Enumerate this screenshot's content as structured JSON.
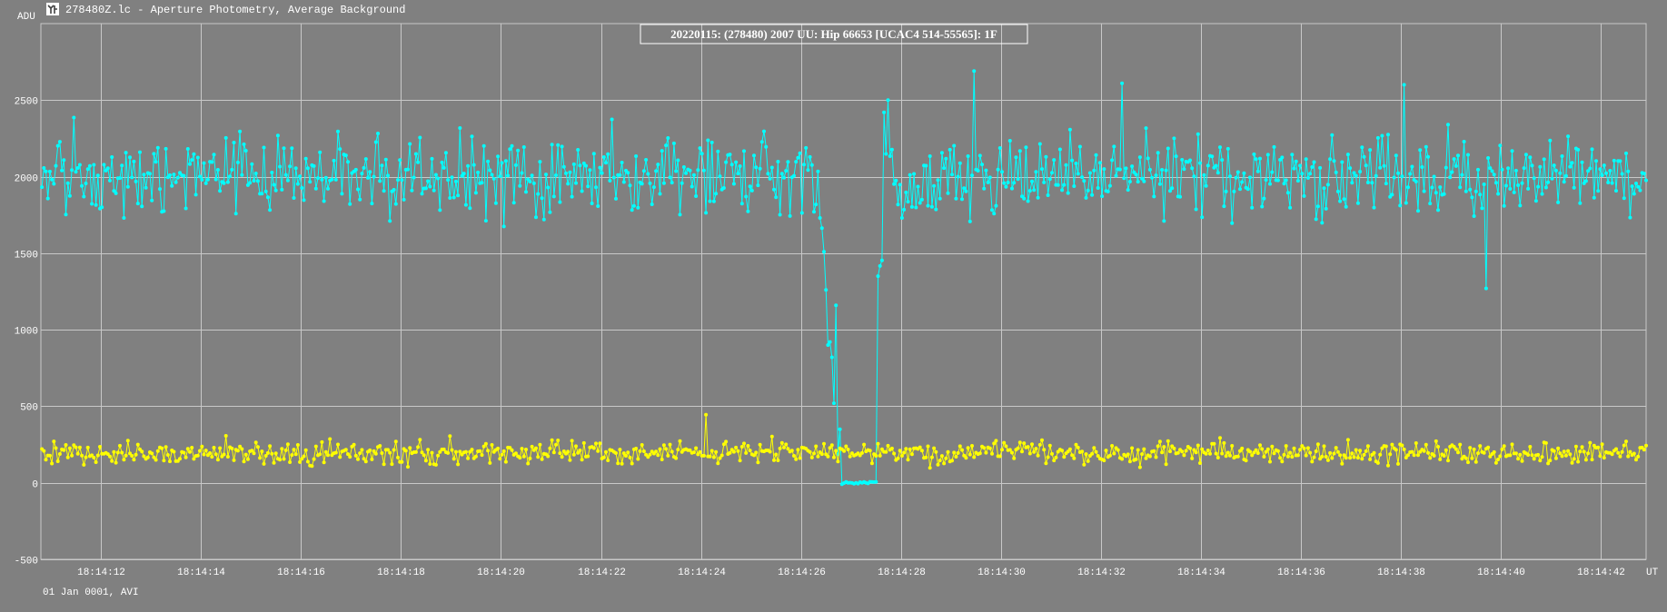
{
  "window": {
    "title": "278480Z.lc - Aperture Photometry, Average Background",
    "icon": "tangra-app-icon"
  },
  "chart_data": {
    "type": "line",
    "title": "20220115: (278480) 2007 UU: Hip 66653 [UCAC4 514-55565]: 1F",
    "ylabel": "ADU",
    "xlabel": "UT",
    "footer": "01 Jan 0001, AVI",
    "ylim": [
      -500,
      3000
    ],
    "yticks": [
      -500,
      0,
      500,
      1000,
      1500,
      2000,
      2500
    ],
    "xlim": [
      10.8,
      42.9
    ],
    "xticks_seconds": [
      12,
      14,
      16,
      18,
      20,
      22,
      24,
      26,
      28,
      30,
      32,
      34,
      36,
      38,
      40,
      42
    ],
    "xtick_labels": [
      "18:14:12",
      "18:14:14",
      "18:14:16",
      "18:14:18",
      "18:14:20",
      "18:14:22",
      "18:14:24",
      "18:14:26",
      "18:14:28",
      "18:14:30",
      "18:14:32",
      "18:14:34",
      "18:14:36",
      "18:14:38",
      "18:14:40",
      "18:14:42"
    ],
    "grid": true,
    "background_color": "#808080",
    "grid_color": "#c8c8c8",
    "series": [
      {
        "color": "#00ffff",
        "baseline": 2000,
        "noise_amplitude": 260,
        "samples_per_second": 25,
        "event": {
          "start_s": 26.78,
          "end_s": 27.5,
          "min_value": 0
        }
      },
      {
        "color": "#ffff00",
        "baseline": 195,
        "noise_amplitude": 75,
        "samples_per_second": 25
      }
    ],
    "notable_points": [
      {
        "series": 0,
        "x": 26.45,
        "y": 1510
      },
      {
        "series": 0,
        "x": 26.55,
        "y": 900
      },
      {
        "series": 0,
        "x": 26.6,
        "y": 820
      },
      {
        "series": 0,
        "x": 26.68,
        "y": 1160
      },
      {
        "series": 0,
        "x": 26.78,
        "y": 350
      },
      {
        "series": 0,
        "x": 27.3,
        "y": 0
      },
      {
        "series": 0,
        "x": 27.55,
        "y": 1350
      },
      {
        "series": 0,
        "x": 27.65,
        "y": 2420
      },
      {
        "series": 0,
        "x": 27.75,
        "y": 2500
      },
      {
        "series": 0,
        "x": 29.47,
        "y": 2690
      },
      {
        "series": 0,
        "x": 32.4,
        "y": 2610
      },
      {
        "series": 0,
        "x": 38.05,
        "y": 2600
      },
      {
        "series": 0,
        "x": 39.7,
        "y": 1270
      },
      {
        "series": 1,
        "x": 24.1,
        "y": 445
      }
    ]
  }
}
